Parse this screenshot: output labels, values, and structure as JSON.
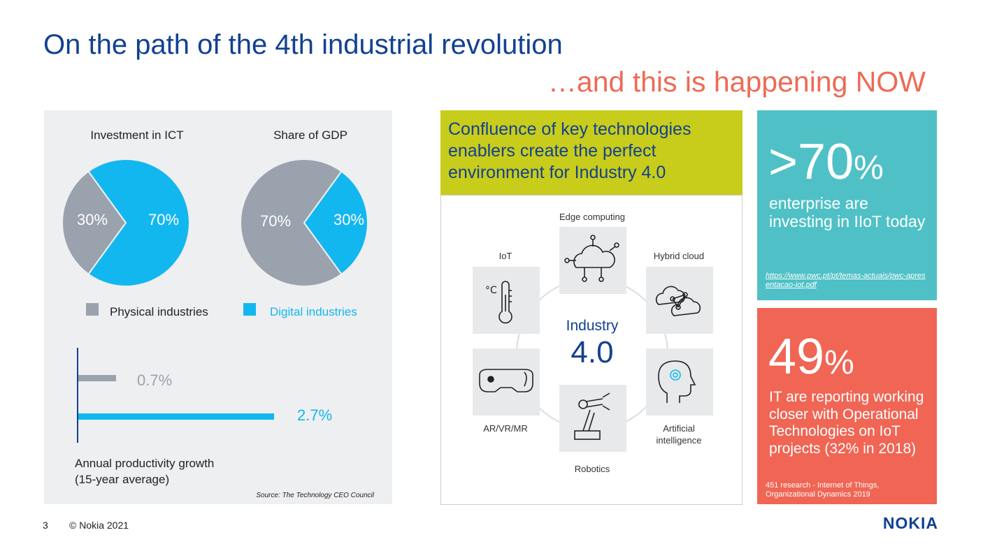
{
  "header": {
    "title": "On the path of the 4th industrial revolution",
    "subtitle": "…and this is happening NOW"
  },
  "left_panel": {
    "pie1_title": "Investment in ICT",
    "pie1_physical": "30%",
    "pie1_digital": "70%",
    "pie2_title": "Share of GDP",
    "pie2_physical": "70%",
    "pie2_digital": "30%",
    "legend_physical": "Physical industries",
    "legend_digital": "Digital industries",
    "bar_physical": "0.7%",
    "bar_digital": "2.7%",
    "bar_caption_line1": "Annual productivity growth",
    "bar_caption_line2": "(15-year average)",
    "source": "Source: The Technology CEO Council",
    "colors": {
      "physical": "#9aa2ad",
      "digital": "#13b7f0"
    }
  },
  "chart_data": [
    {
      "type": "pie",
      "title": "Investment in ICT",
      "categories": [
        "Physical industries",
        "Digital industries"
      ],
      "values": [
        30,
        70
      ]
    },
    {
      "type": "pie",
      "title": "Share of GDP",
      "categories": [
        "Physical industries",
        "Digital industries"
      ],
      "values": [
        70,
        30
      ]
    },
    {
      "type": "bar",
      "title": "",
      "xlabel": "Annual productivity growth (15-year average)",
      "categories": [
        "Physical industries",
        "Digital industries"
      ],
      "values": [
        0.7,
        2.7
      ]
    }
  ],
  "center": {
    "head_lead": "Confluence of key technologies enablers",
    "head_rest": " create the perfect environment for Industry 4.0",
    "hub_line1": "Industry",
    "hub_line2": "4.0",
    "techs": {
      "edge": "Edge computing",
      "iot": "IoT",
      "hybrid": "Hybrid cloud",
      "arvr": "AR/VR/MR",
      "ai_line1": "Artificial",
      "ai_line2": "intelligence",
      "robotics": "Robotics"
    }
  },
  "stats": {
    "stat1_value": ">70",
    "stat1_pct": "%",
    "stat1_text": "enterprise are investing in IIoT today",
    "stat1_source": "https://www.pwc.pt/pt/temas-actuais/pwc-apresentacao-iot.pdf",
    "stat2_value": "49",
    "stat2_pct": "%",
    "stat2_text": "IT are reporting working closer with Operational Technologies on IoT projects (32% in 2018)",
    "stat2_source_line1": "451 research - Internet of Things,",
    "stat2_source_line2": "Organizational Dynamics 2019"
  },
  "footer": {
    "page_number": "3",
    "copyright": "© Nokia 2021",
    "logo": "NOKIA"
  }
}
